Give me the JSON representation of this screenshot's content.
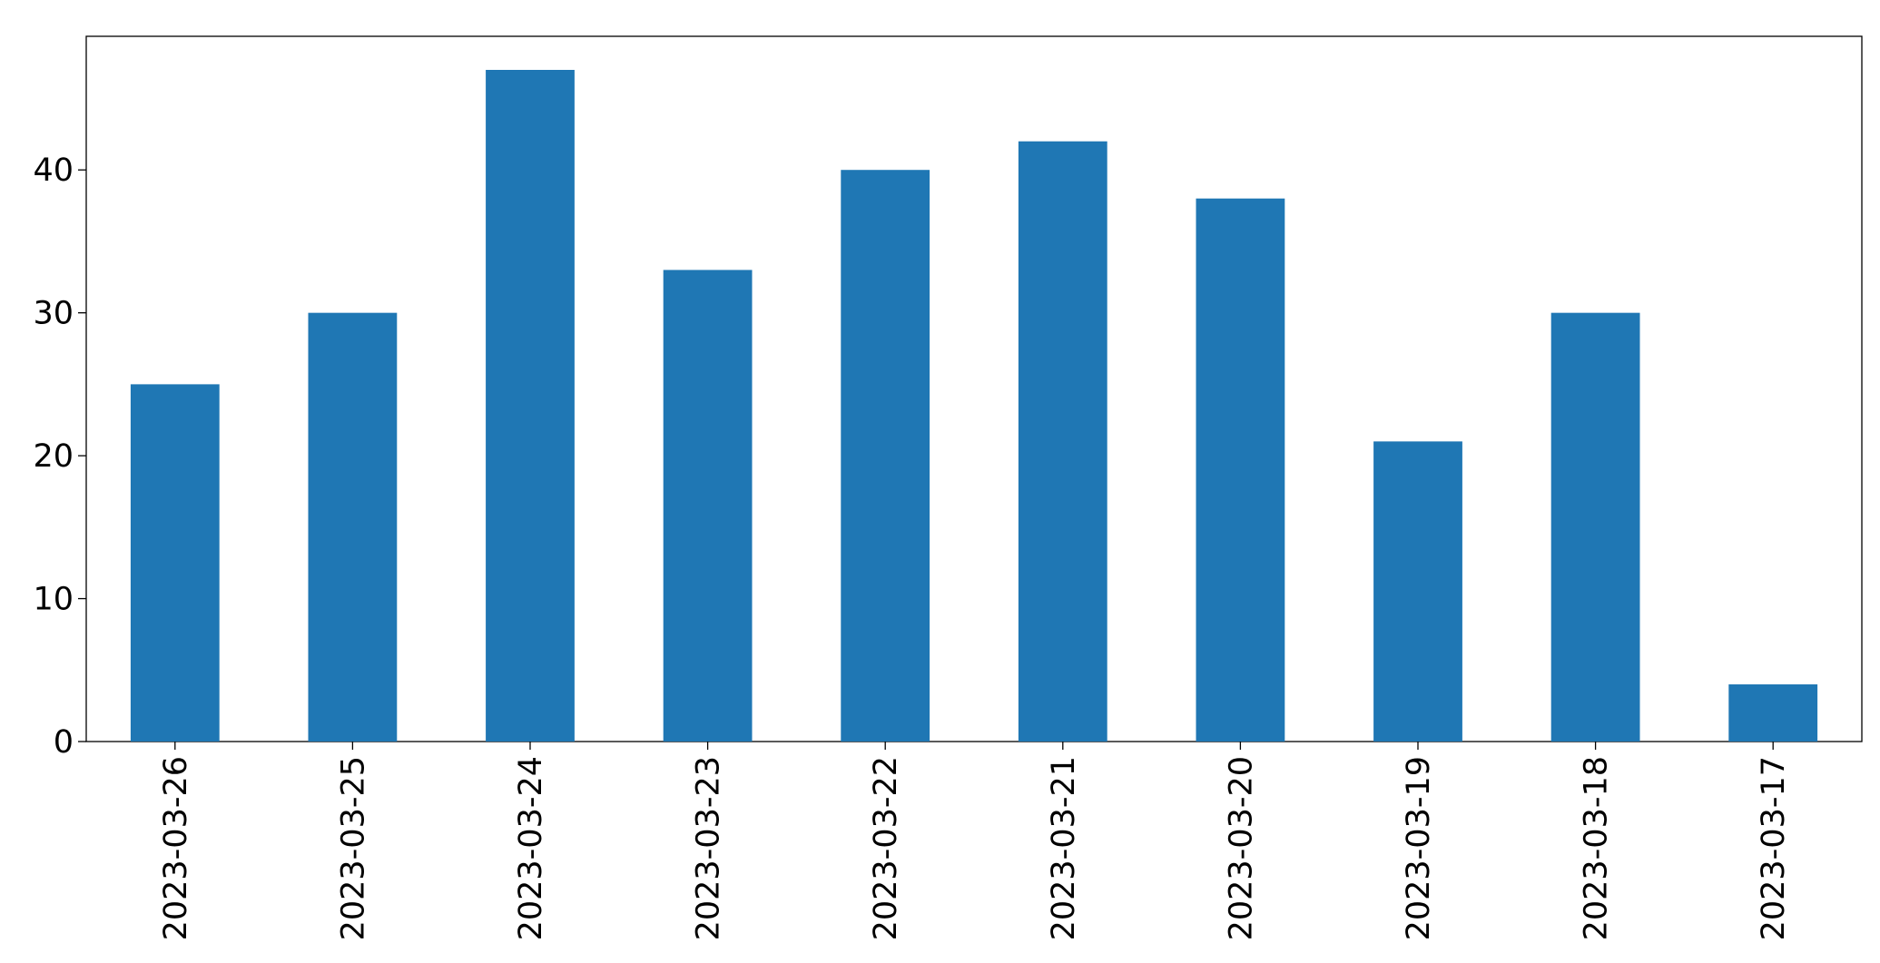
{
  "chart_data": {
    "type": "bar",
    "categories": [
      "2023-03-26",
      "2023-03-25",
      "2023-03-24",
      "2023-03-23",
      "2023-03-22",
      "2023-03-21",
      "2023-03-20",
      "2023-03-19",
      "2023-03-18",
      "2023-03-17"
    ],
    "values": [
      25,
      30,
      47,
      33,
      40,
      42,
      38,
      21,
      30,
      4
    ],
    "color": "#1f77b4",
    "ylim": [
      0,
      49.35
    ],
    "yticks": [
      0,
      10,
      20,
      30,
      40
    ],
    "grid": false
  }
}
